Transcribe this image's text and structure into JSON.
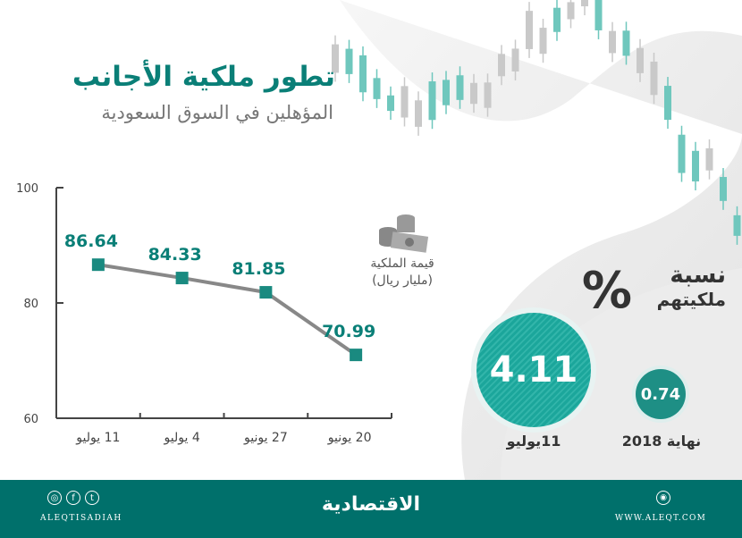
{
  "title": "تطور ملكية الأجانب",
  "subtitle": "المؤهلين في السوق السعودية",
  "legend": {
    "line1": "قيمة الملكية",
    "line2": "(مليار ريال)",
    "icon": "money-coins-icon"
  },
  "chart_data": {
    "type": "line",
    "title": "قيمة الملكية (مليار ريال)",
    "categories": [
      "11 يوليو",
      "4 يوليو",
      "27 يونيو",
      "20 يونيو"
    ],
    "values": [
      86.64,
      84.33,
      81.85,
      70.99
    ],
    "value_labels": [
      "86.64",
      "84.33",
      "81.85",
      "70.99"
    ],
    "yticks": [
      "60",
      "80",
      "100"
    ],
    "ylim": [
      60,
      100
    ],
    "xlabel": "",
    "ylabel": "",
    "grid": false,
    "colors": {
      "marker": "#1a8a80",
      "line": "#888888",
      "label": "#0a7f77"
    }
  },
  "ownership": {
    "label_line1": "نسبة",
    "label_line2": "ملكيتهم",
    "symbol": "%",
    "current": {
      "value": "4.11",
      "label": "11يوليو"
    },
    "start": {
      "value": "0.74",
      "label": "نهاية 2018"
    }
  },
  "footer": {
    "handle": "ALEQTISADIAH",
    "logo": "الاقتصادية",
    "website": "WWW.ALEQT.COM",
    "social": [
      "instagram-icon",
      "facebook-icon",
      "twitter-icon"
    ],
    "bg": "#00706b"
  }
}
